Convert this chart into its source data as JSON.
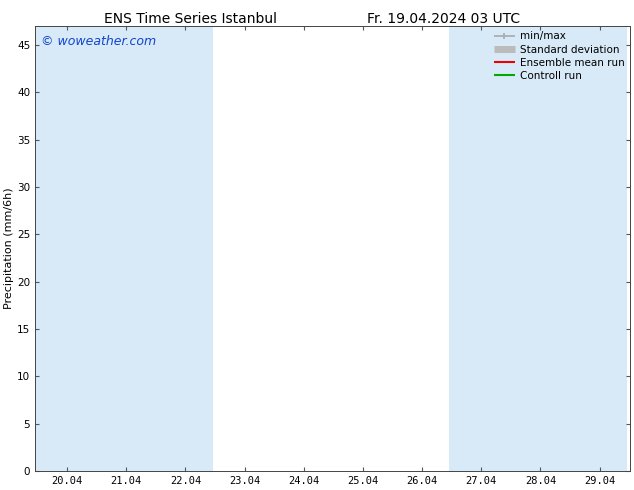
{
  "title_left": "ENS Time Series Istanbul",
  "title_right": "Fr. 19.04.2024 03 UTC",
  "ylabel": "Precipitation (mm/6h)",
  "watermark": "© woweather.com",
  "watermark_color": "#1144cc",
  "background_color": "#ffffff",
  "plot_bg_color": "#ffffff",
  "shaded_columns": [
    {
      "xmin": 19.5,
      "xmax": 20.5,
      "color": "#d8eaf8"
    },
    {
      "xmin": 20.5,
      "xmax": 21.5,
      "color": "#d8eaf8"
    },
    {
      "xmin": 21.5,
      "xmax": 22.5,
      "color": "#d8eaf8"
    },
    {
      "xmin": 26.5,
      "xmax": 27.5,
      "color": "#d8eaf8"
    },
    {
      "xmin": 27.5,
      "xmax": 28.5,
      "color": "#d8eaf8"
    },
    {
      "xmin": 28.5,
      "xmax": 29.5,
      "color": "#d8eaf8"
    }
  ],
  "xtick_positions": [
    20.04,
    21.04,
    22.04,
    23.04,
    24.04,
    25.04,
    26.04,
    27.04,
    28.04,
    29.04
  ],
  "xtick_labels": [
    "20.04",
    "21.04",
    "22.04",
    "23.04",
    "24.04",
    "25.04",
    "26.04",
    "27.04",
    "28.04",
    "29.04"
  ],
  "xlim": [
    19.5,
    29.55
  ],
  "ylim": [
    0,
    47
  ],
  "yticks": [
    0,
    5,
    10,
    15,
    20,
    25,
    30,
    35,
    40,
    45
  ],
  "legend_entries": [
    {
      "label": "min/max",
      "color": "#aaaaaa",
      "linewidth": 1.2,
      "thick": false
    },
    {
      "label": "Standard deviation",
      "color": "#bbbbbb",
      "linewidth": 5,
      "thick": true
    },
    {
      "label": "Ensemble mean run",
      "color": "#ee0000",
      "linewidth": 1.5,
      "thick": false
    },
    {
      "label": "Controll run",
      "color": "#00aa00",
      "linewidth": 1.5,
      "thick": false
    }
  ],
  "title_fontsize": 10,
  "watermark_fontsize": 9,
  "ylabel_fontsize": 8,
  "tick_fontsize": 7.5,
  "legend_fontsize": 7.5
}
